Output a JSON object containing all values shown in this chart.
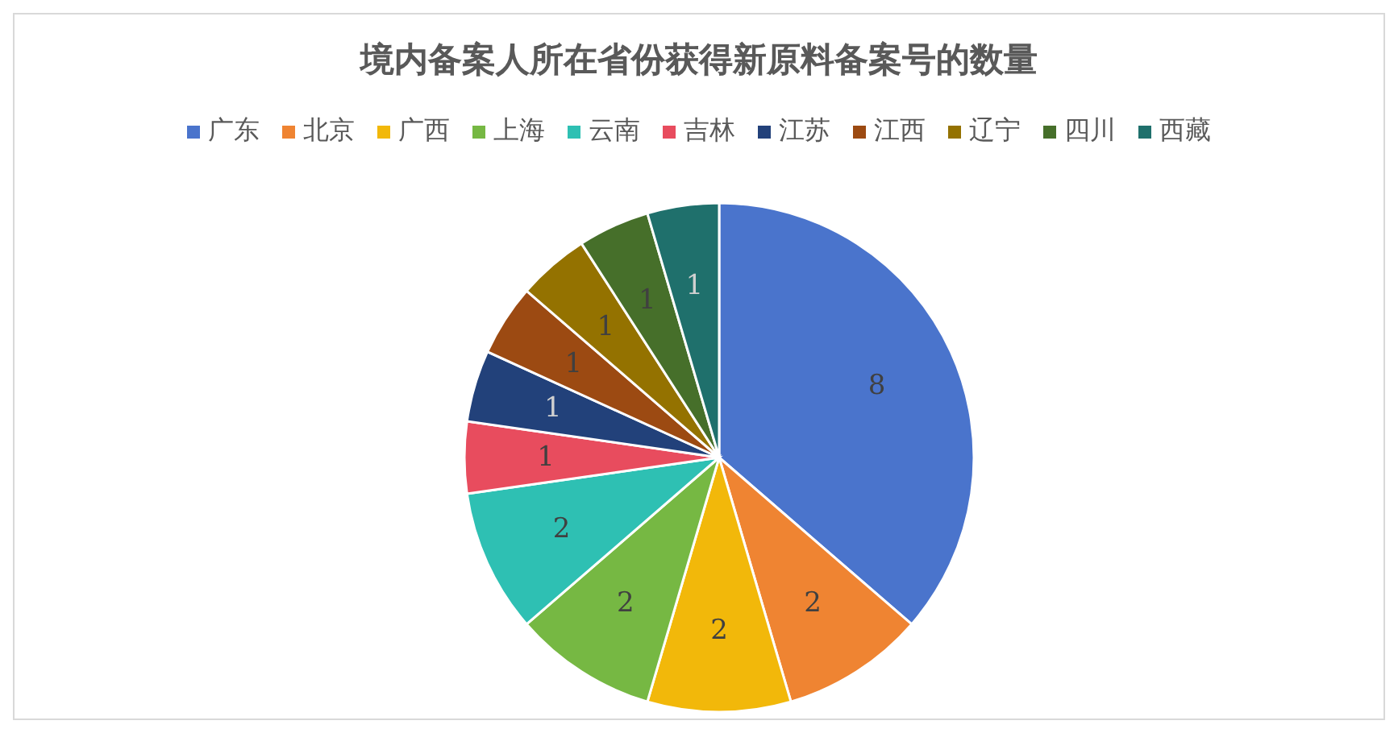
{
  "chart_data": {
    "type": "pie",
    "title": "境内备案人所在省份获得新原料备案号的数量",
    "categories": [
      "广东",
      "北京",
      "广西",
      "上海",
      "云南",
      "吉林",
      "江苏",
      "江西",
      "辽宁",
      "四川",
      "西藏"
    ],
    "values": [
      8,
      2,
      2,
      2,
      2,
      1,
      1,
      1,
      1,
      1,
      1
    ],
    "colors": [
      "#4a74cc",
      "#ef8432",
      "#f2b80a",
      "#76b843",
      "#2ec0b3",
      "#e84c5e",
      "#22417a",
      "#9c4a12",
      "#947200",
      "#466f2a",
      "#1f706c"
    ],
    "data_labels": true,
    "legend": "top"
  }
}
